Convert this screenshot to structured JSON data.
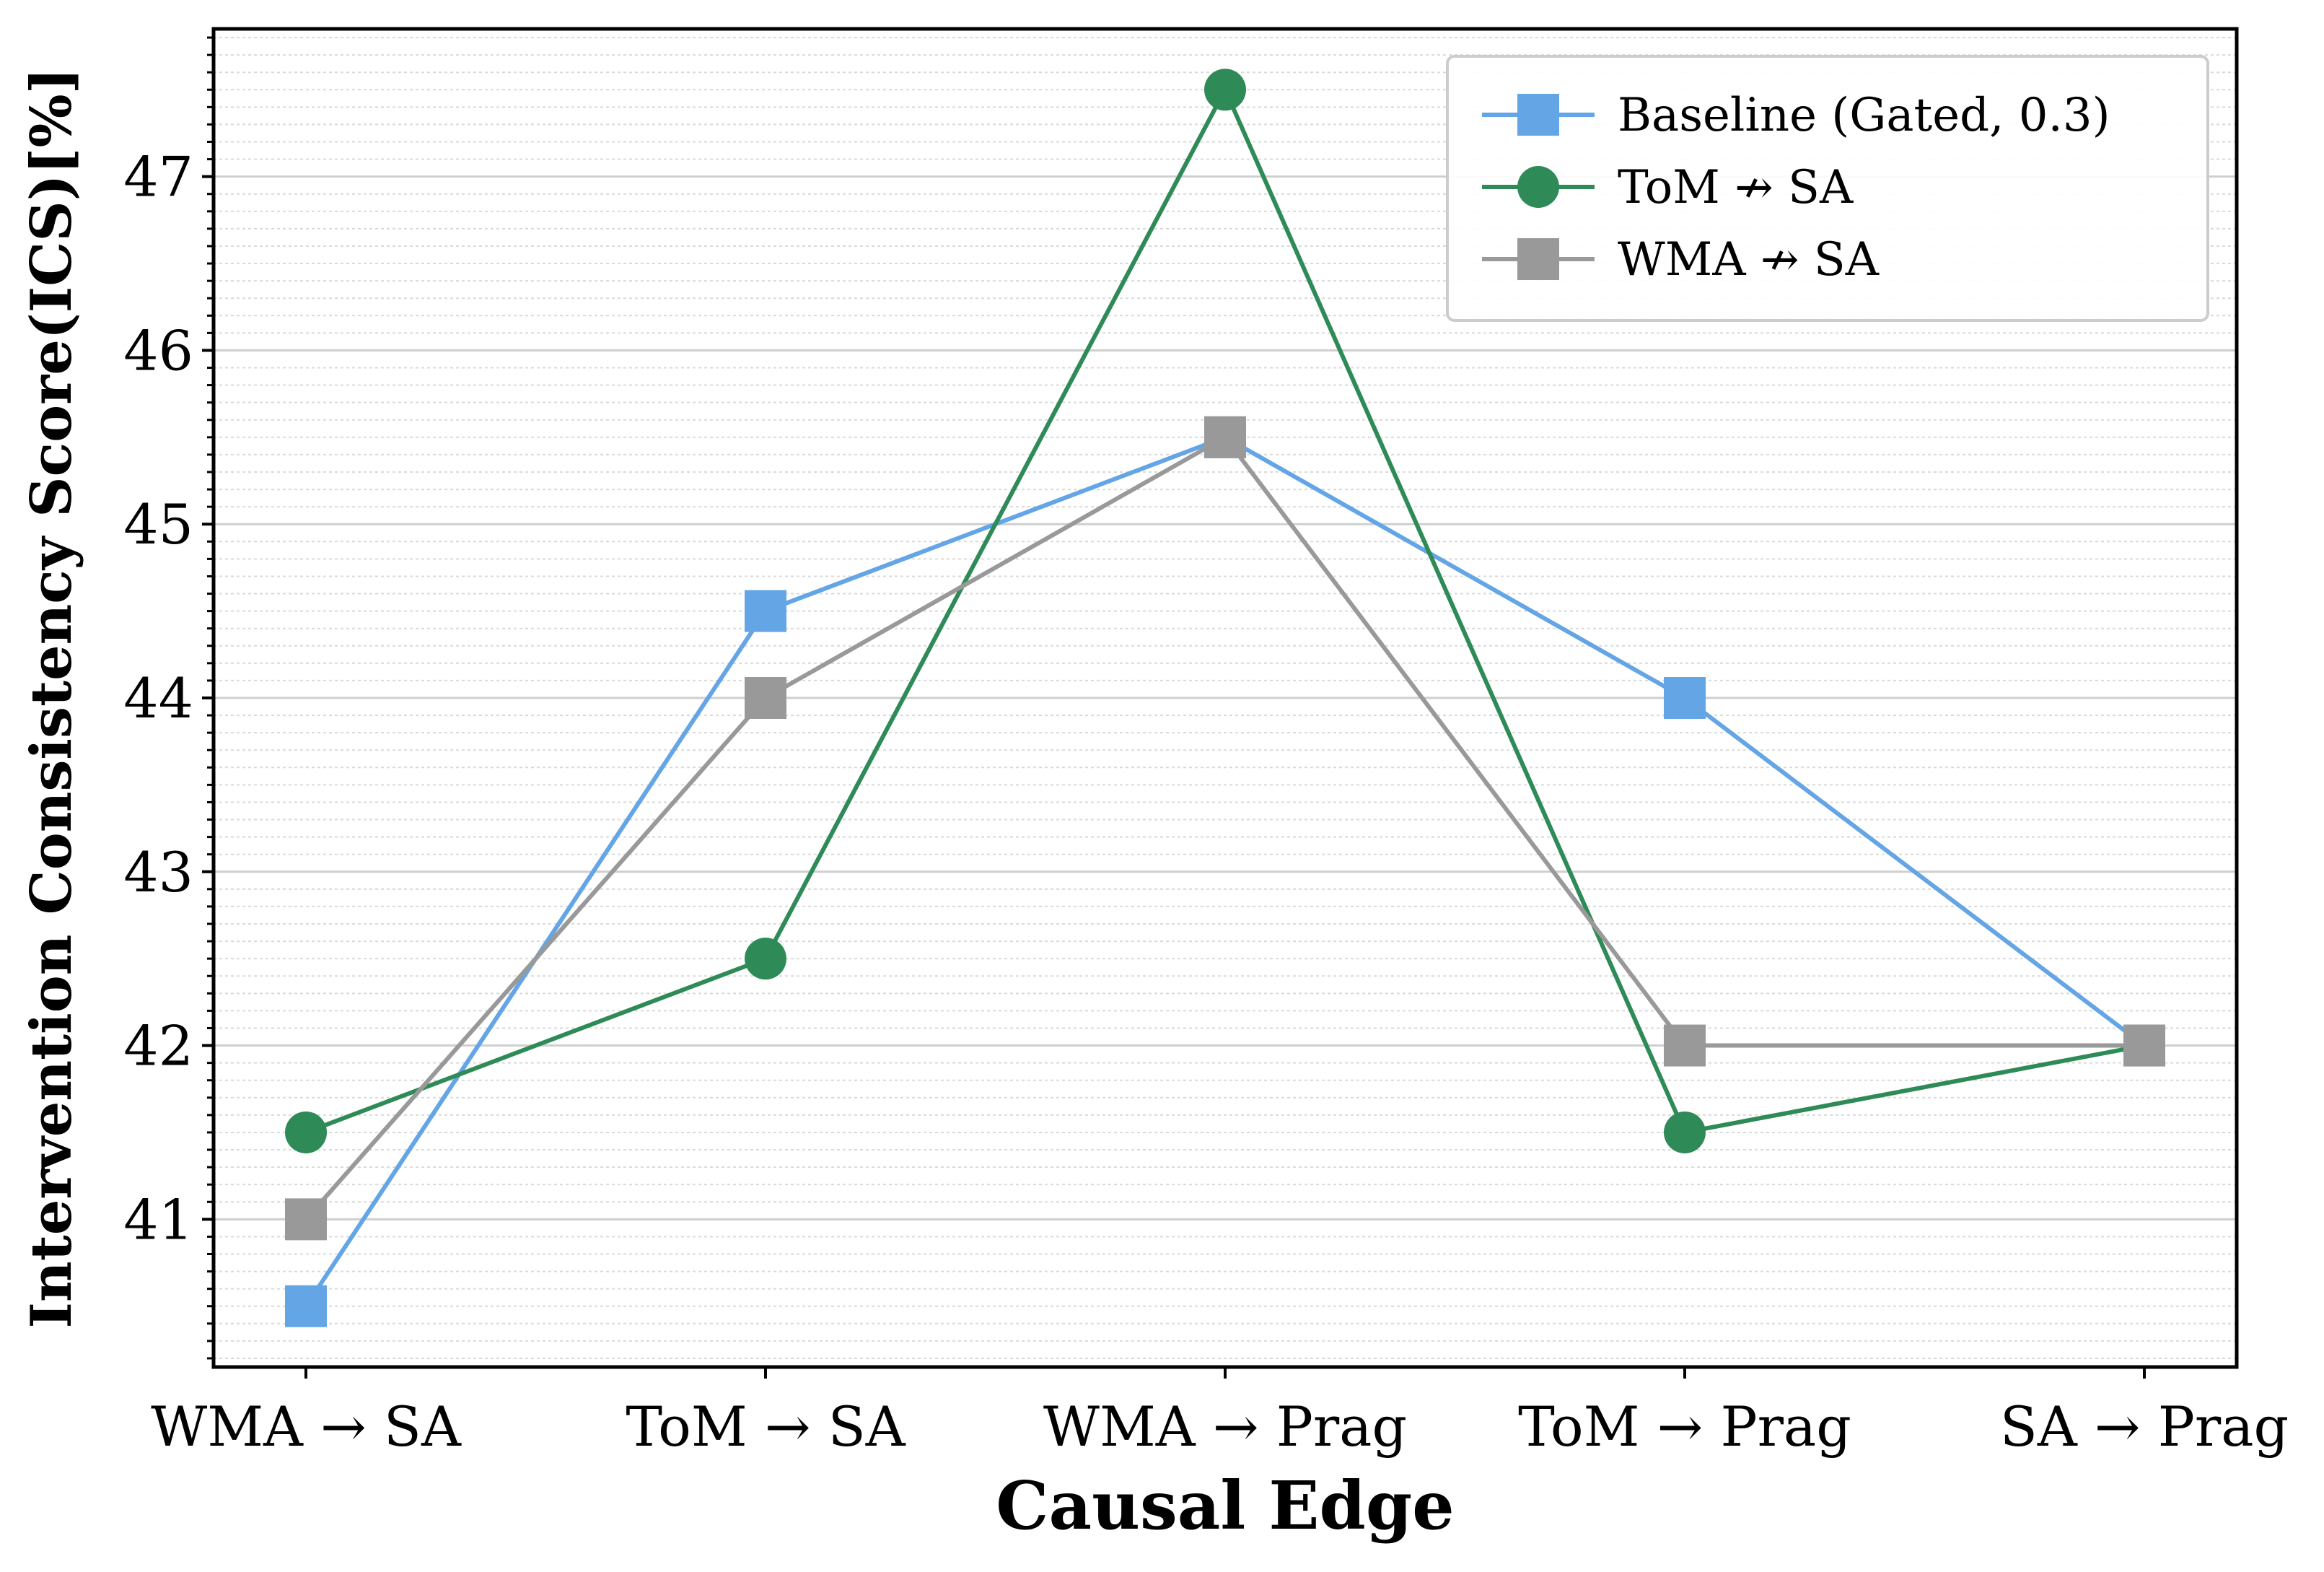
{
  "chart_data": {
    "type": "line",
    "title": "",
    "xlabel": "Causal Edge",
    "ylabel": "Intervention Consistency Score(ICS)[%]",
    "categories": [
      "WMA → SA",
      "ToM → SA",
      "WMA → Prag",
      "ToM → Prag",
      "SA → Prag"
    ],
    "ylim": [
      40.15,
      47.85
    ],
    "yticks": [
      41,
      42,
      43,
      44,
      45,
      46,
      47
    ],
    "grid": true,
    "legend_position": "top-right",
    "series": [
      {
        "name": "Baseline (Gated, 0.3)",
        "marker": "square",
        "color": "#64A5E6",
        "values": [
          40.5,
          44.5,
          45.5,
          44.0,
          42.0
        ]
      },
      {
        "name": "ToM ↛ SA",
        "marker": "circle",
        "color": "#2E8B57",
        "values": [
          41.5,
          42.5,
          47.5,
          41.5,
          42.0
        ]
      },
      {
        "name": "WMA ↛ SA",
        "marker": "square",
        "color": "#999999",
        "values": [
          41.0,
          44.0,
          45.5,
          42.0,
          42.0
        ]
      }
    ]
  }
}
